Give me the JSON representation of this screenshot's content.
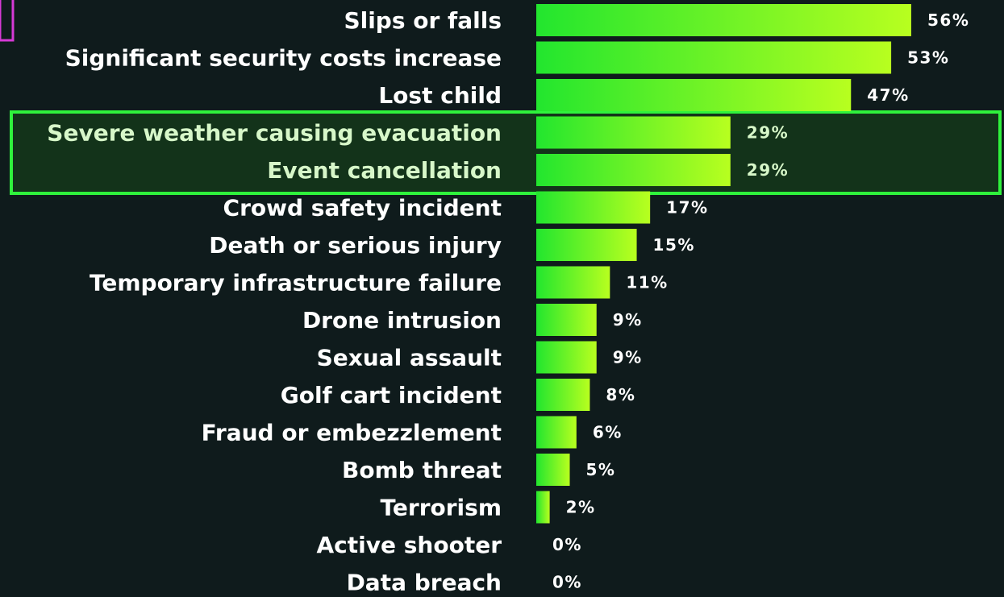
{
  "chart_data": {
    "type": "bar",
    "orientation": "horizontal",
    "categories": [
      "Slips or falls",
      "Significant security costs increase",
      "Lost child",
      "Severe weather causing evacuation",
      "Event cancellation",
      "Crowd safety incident",
      "Death or serious injury",
      "Temporary infrastructure failure",
      "Drone intrusion",
      "Sexual assault",
      "Golf cart incident",
      "Fraud or embezzlement",
      "Bomb threat",
      "Terrorism",
      "Active shooter",
      "Data breach"
    ],
    "values": [
      56,
      53,
      47,
      29,
      29,
      17,
      15,
      11,
      9,
      9,
      8,
      6,
      5,
      2,
      0,
      0
    ],
    "value_labels": [
      "56%",
      "53%",
      "47%",
      "29%",
      "29%",
      "17%",
      "15%",
      "11%",
      "9%",
      "9%",
      "8%",
      "6%",
      "5%",
      "2%",
      "0%",
      "0%"
    ],
    "highlighted": [
      "Severe weather causing evacuation",
      "Event cancellation"
    ],
    "xlim": [
      0,
      60
    ],
    "grid": false,
    "legend": "none",
    "colors": {
      "background": "#0f1b1c",
      "bar_start": "#22e62e",
      "bar_end": "#b8ff1f",
      "highlight_border": "#2ff23c",
      "highlight_fill": "#13331a",
      "corner_mark": "#d63ad6"
    }
  }
}
